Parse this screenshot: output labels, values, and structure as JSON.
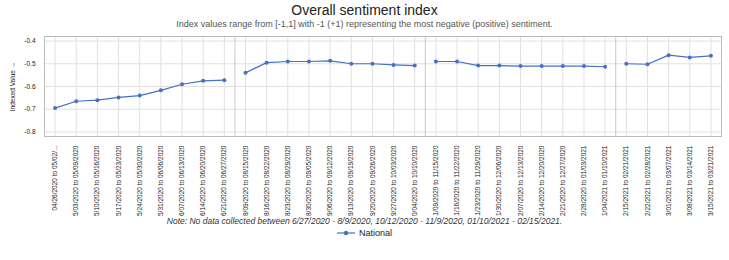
{
  "chart_data": {
    "type": "line",
    "title": "Overall sentiment index",
    "subtitle": "Index values range from [-1,1] with -1 (+1) representing the most negative (positive) sentiment.",
    "note": "Note: No data collected between 6/27/2020 - 8/9/2020, 10/12/2020 - 11/9/2020, 01/10/2021 - 02/15/2021.",
    "y_label": "Indexed Value",
    "categories": [
      "04/26/2020 to 05/02/...",
      "05/03/2020 to 05/09/2020",
      "05/10/2020 to 05/16/2020",
      "05/17/2020 to 05/23/2020",
      "05/24/2020 to 05/30/2020",
      "05/31/2020 to 06/06/2020",
      "06/07/2020 to 06/13/2020",
      "06/14/2020 to 06/20/2020",
      "06/21/2020 to 06/27/2020",
      "08/09/2020 to 08/15/2020",
      "08/16/2020 to 08/22/2020",
      "08/23/2020 to 08/29/2020",
      "08/30/2020 to 09/05/2020",
      "09/06/2020 to 09/12/2020",
      "09/13/2020 to 09/19/2020",
      "09/20/2020 to 09/26/2020",
      "09/27/2020 to 10/03/2020",
      "10/04/2020 to 10/10/2020",
      "11/09/2020 to 11/15/2020",
      "11/16/2020 to 11/22/2020",
      "11/23/2020 to 11/29/2020",
      "11/30/2020 to 12/06/2020",
      "12/07/2020 to 12/13/2020",
      "12/14/2020 to 12/20/2020",
      "12/21/2020 to 12/27/2020",
      "12/28/2020 to 01/03/2021",
      "01/04/2021 to 01/10/2021",
      "02/15/2021 to 02/21/2021",
      "02/22/2021 to 02/28/2021",
      "03/01/2021 to 03/07/2021",
      "03/08/2021 to 03/14/2021",
      "03/15/2021 to 03/21/2021"
    ],
    "series": [
      {
        "name": "National",
        "color": "#4472C4",
        "marker": "circle",
        "values": [
          -0.695,
          -0.665,
          -0.66,
          -0.648,
          -0.64,
          -0.617,
          -0.59,
          -0.575,
          -0.572,
          -0.54,
          -0.495,
          -0.49,
          -0.49,
          -0.487,
          -0.5,
          -0.5,
          -0.505,
          -0.508,
          -0.49,
          -0.49,
          -0.508,
          -0.508,
          -0.51,
          -0.51,
          -0.51,
          -0.51,
          -0.513,
          -0.5,
          -0.502,
          -0.462,
          -0.472,
          -0.465
        ]
      }
    ],
    "gaps_after": [
      "06/21/2020 to 06/27/2020",
      "10/04/2020 to 10/10/2020",
      "01/04/2021 to 01/10/2021"
    ],
    "ylim": [
      -0.82,
      -0.38
    ],
    "yticks": [
      -0.8,
      -0.7,
      -0.6,
      -0.5,
      -0.4
    ],
    "grid": true,
    "legend": "bottom"
  }
}
